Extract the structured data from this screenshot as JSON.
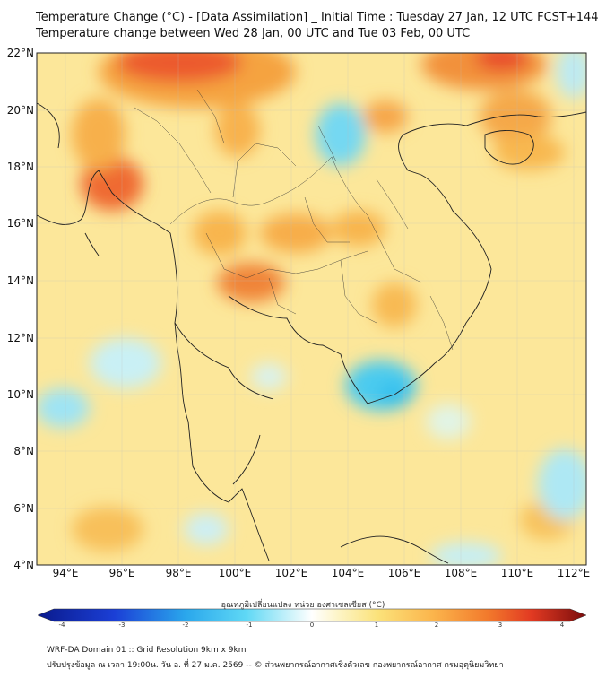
{
  "title_line1": "Temperature Change (°C) - [Data Assimilation] _ Initial Time : Tuesday 27 Jan, 12 UTC FCST+144",
  "title_line2": "Temperature change between Wed 28 Jan, 00 UTC and Tue 03 Feb, 00 UTC",
  "lat_labels": [
    "22°N",
    "20°N",
    "18°N",
    "16°N",
    "14°N",
    "12°N",
    "10°N",
    "8°N",
    "6°N",
    "4°N"
  ],
  "lon_labels": [
    "94°E",
    "96°E",
    "98°E",
    "100°E",
    "102°E",
    "104°E",
    "106°E",
    "108°E",
    "110°E",
    "112°E"
  ],
  "colorbar": {
    "label": "อุณหภูมิเปลี่ยนแปลง หน่วย องศาเซลเซียส (°C)",
    "ticks": [
      "-4",
      "-3",
      "-2",
      "-1",
      "0",
      "1",
      "2",
      "3",
      "4"
    ],
    "min": -4,
    "max": 4
  },
  "footer_line1": "WRF-DA Domain 01 :: Grid Resolution 9km x 9km",
  "footer_line2": "ปรับปรุงข้อมูล ณ เวลา 19:00น. วัน อ. ที่ 27 ม.ค. 2569 -- © ส่วนพยากรณ์อากาศเชิงตัวเลข กองพยากรณ์อากาศ กรมอุตุนิยมวิทยา",
  "colors": {
    "ocean_base": "#fbe98e",
    "warm": "#fbb04a",
    "hot": "#e8402c",
    "cool": "#8fe0f2",
    "cold": "#3ac6ee",
    "border": "#222222"
  }
}
